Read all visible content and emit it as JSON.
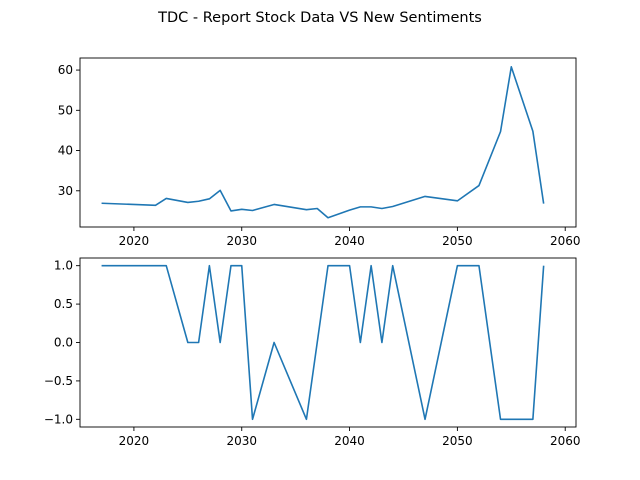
{
  "figure": {
    "title": "TDC - Report Stock Data VS New Sentiments"
  },
  "chart_data": [
    {
      "type": "line",
      "title": "",
      "xlabel": "",
      "ylabel": "",
      "xlim": [
        2015,
        2061
      ],
      "ylim": [
        21,
        63
      ],
      "xticks": [
        2020,
        2030,
        2040,
        2050,
        2060
      ],
      "yticks": [
        30,
        40,
        50,
        60
      ],
      "grid": false,
      "color": "#1f77b4",
      "x": [
        2017,
        2022,
        2023,
        2025,
        2026,
        2027,
        2028,
        2029,
        2030,
        2031,
        2033,
        2036,
        2037,
        2038,
        2040,
        2041,
        2042,
        2043,
        2044,
        2047,
        2050,
        2052,
        2054,
        2055,
        2057,
        2058
      ],
      "y": [
        26.9,
        26.4,
        28.1,
        27.1,
        27.4,
        28.0,
        30.1,
        25.0,
        25.4,
        25.1,
        26.6,
        25.3,
        25.6,
        23.3,
        25.2,
        26.0,
        26.0,
        25.6,
        26.1,
        28.6,
        27.5,
        31.3,
        44.7,
        60.8,
        44.8,
        26.8
      ]
    },
    {
      "type": "line",
      "title": "",
      "xlabel": "",
      "ylabel": "",
      "xlim": [
        2015,
        2061
      ],
      "ylim": [
        -1.1,
        1.1
      ],
      "xticks": [
        2020,
        2030,
        2040,
        2050,
        2060
      ],
      "yticks": [
        -1.0,
        -0.5,
        0.0,
        0.5,
        1.0
      ],
      "ytick_labels": [
        "−1.0",
        "−0.5",
        "0.0",
        "0.5",
        "1.0"
      ],
      "grid": false,
      "color": "#1f77b4",
      "x": [
        2017,
        2023,
        2025,
        2026,
        2027,
        2028,
        2029,
        2030,
        2031,
        2033,
        2036,
        2038,
        2040,
        2041,
        2042,
        2043,
        2044,
        2047,
        2050,
        2052,
        2054,
        2057,
        2058
      ],
      "y": [
        1,
        1,
        0,
        0,
        1,
        0,
        1,
        1,
        -1,
        0,
        -1,
        1,
        1,
        0,
        1,
        0,
        1,
        -1,
        1,
        1,
        -1,
        -1,
        1
      ]
    }
  ]
}
